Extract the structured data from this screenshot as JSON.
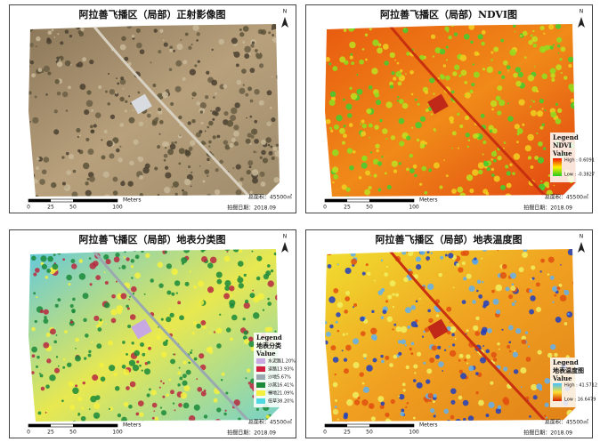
{
  "panels": [
    {
      "style": "ortho",
      "title": "阿拉善飞播区（局部）正射影像图",
      "north": "N",
      "scale": {
        "labels": [
          "0",
          "25",
          "50",
          "100"
        ],
        "unit": "Meters"
      },
      "area": "总面积：45500㎡",
      "date": "拍摄日期：2018.09"
    },
    {
      "style": "ndvi",
      "title": "阿拉善飞播区（局部）NDVI图",
      "north": "N",
      "scale": {
        "labels": [
          "0",
          "25",
          "50",
          "100"
        ],
        "unit": "Meters"
      },
      "area": "总面积：45500㎡",
      "date": "拍摄日期：2018.09",
      "legend": {
        "heading": "Legend",
        "layer": "NDVI",
        "field": "Value",
        "high": "High : 0.6091",
        "low": "Low : -0.3827",
        "colors": [
          "#22cc22",
          "#ffee00",
          "#ee1100"
        ]
      }
    },
    {
      "style": "class",
      "title": "阿拉善飞播区（局部）地表分类图",
      "north": "N",
      "scale": {
        "labels": [
          "0",
          "25",
          "50",
          "100"
        ],
        "unit": "Meters"
      },
      "area": "总面积：45500㎡",
      "date": "拍摄日期：2018.09",
      "legend": {
        "heading": "Legend",
        "layer": "地表分类",
        "field": "Value",
        "items": [
          {
            "label": "水泥路1.20%",
            "color": "#c8a8e0"
          },
          {
            "label": "道路13.93%",
            "color": "#d02040"
          },
          {
            "label": "沙地5.67%",
            "color": "#9aa8b0"
          },
          {
            "label": "沙蒿16.41%",
            "color": "#1a8a3a"
          },
          {
            "label": "裸地21.09%",
            "color": "#f4f040"
          },
          {
            "label": "低草38.20%",
            "color": "#50d8e0"
          }
        ]
      }
    },
    {
      "style": "temp",
      "title": "阿拉善飞播区（局部）地表温度图",
      "north": "N",
      "scale": {
        "labels": [
          "0",
          "25",
          "50",
          "100"
        ],
        "unit": "Meters"
      },
      "area": "总面积：45500㎡",
      "date": "拍摄日期：2018.09",
      "legend": {
        "heading": "Legend",
        "layer": "地表温度图",
        "field": "Value",
        "high": "High : 41.5712",
        "low": "Low : 16.6479",
        "colors": [
          "#d02000",
          "#ffe030",
          "#40c0ff"
        ]
      }
    }
  ]
}
